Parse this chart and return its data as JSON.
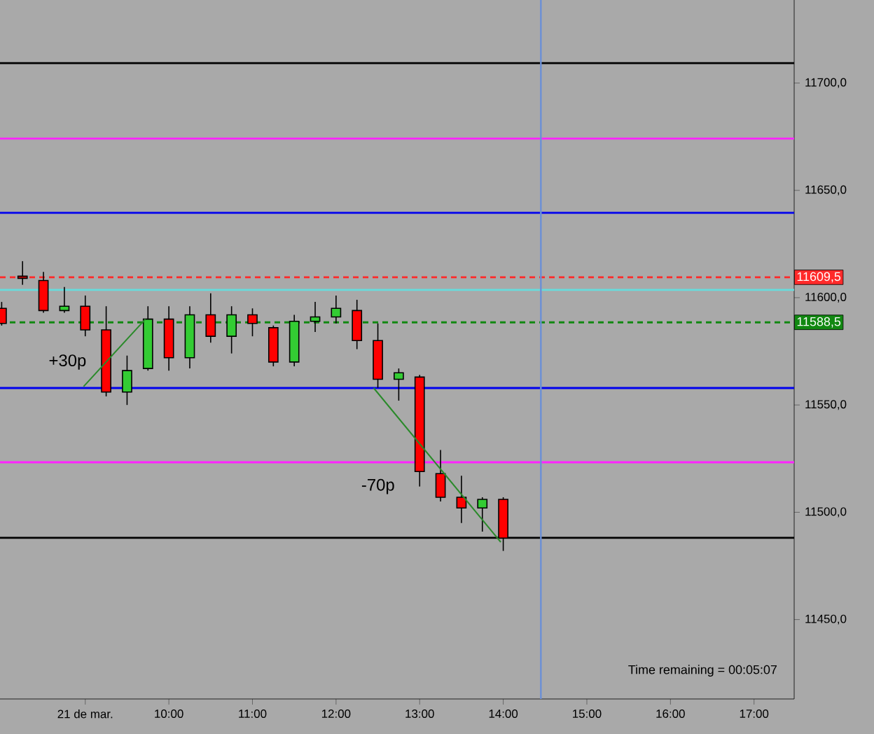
{
  "chart_data": {
    "type": "candlestick",
    "x": [
      8.0,
      8.25,
      8.5,
      8.75,
      9.0,
      9.25,
      9.5,
      9.75,
      10.0,
      10.25,
      10.5,
      10.75,
      11.0,
      11.25,
      11.5,
      11.75,
      12.0,
      12.25,
      12.5,
      12.75,
      13.0,
      13.25,
      13.5,
      13.75,
      14.0
    ],
    "ohlc": [
      [
        11595,
        11598,
        11587,
        11588
      ],
      [
        11610,
        11617,
        11606,
        11609
      ],
      [
        11608,
        11612,
        11593,
        11594
      ],
      [
        11594,
        11605,
        11593,
        11596
      ],
      [
        11596,
        11601,
        11582,
        11585
      ],
      [
        11585,
        11596,
        11554,
        11556
      ],
      [
        11556,
        11573,
        11550,
        11566
      ],
      [
        11567,
        11596,
        11566,
        11590
      ],
      [
        11590,
        11596,
        11566,
        11572
      ],
      [
        11572,
        11596,
        11567,
        11592
      ],
      [
        11592,
        11602,
        11579,
        11582
      ],
      [
        11582,
        11596,
        11574,
        11592
      ],
      [
        11592,
        11595,
        11582,
        11588
      ],
      [
        11586,
        11587,
        11568,
        11570
      ],
      [
        11570,
        11592,
        11568,
        11589
      ],
      [
        11589,
        11598,
        11584,
        11591
      ],
      [
        11591,
        11601,
        11588,
        11595
      ],
      [
        11594,
        11599,
        11576,
        11580
      ],
      [
        11580,
        11588,
        11558,
        11562
      ],
      [
        11562,
        11567,
        11552,
        11565
      ],
      [
        11563,
        11564,
        11512,
        11519
      ],
      [
        11518,
        11529,
        11505,
        11507
      ],
      [
        11507,
        11517,
        11495,
        11502
      ],
      [
        11502,
        11507,
        11491,
        11506
      ],
      [
        11506,
        11507,
        11482,
        11488
      ]
    ],
    "colors": [
      "#ff0000",
      "#ff0000",
      "#ff0000",
      "#33cc33",
      "#ff0000",
      "#ff0000",
      "#33cc33",
      "#33cc33",
      "#ff0000",
      "#33cc33",
      "#ff0000",
      "#33cc33",
      "#ff0000",
      "#ff0000",
      "#33cc33",
      "#33cc33",
      "#33cc33",
      "#ff0000",
      "#ff0000",
      "#33cc33",
      "#ff0000",
      "#ff0000",
      "#ff0000",
      "#33cc33",
      "#ff0000"
    ],
    "series": [
      {
        "type": "line",
        "color": "#2a8a2a",
        "x": [
          8.98,
          9.72
        ],
        "values": [
          11558.6,
          11590
        ]
      },
      {
        "type": "line",
        "color": "#2a8a2a",
        "x": [
          12.45,
          13.97
        ],
        "values": [
          11557.9,
          11486.1
        ]
      }
    ],
    "xlim": [
      7.98,
      17.48
    ],
    "ylim": [
      11413,
      11738.7
    ],
    "xticks": [
      {
        "value": 9,
        "label": "21 de mar."
      },
      {
        "value": 10,
        "label": "10:00"
      },
      {
        "value": 11,
        "label": "11:00"
      },
      {
        "value": 12,
        "label": "12:00"
      },
      {
        "value": 13,
        "label": "13:00"
      },
      {
        "value": 14,
        "label": "14:00"
      },
      {
        "value": 15,
        "label": "15:00"
      },
      {
        "value": 16,
        "label": "16:00"
      },
      {
        "value": 17,
        "label": "17:00"
      }
    ],
    "yticks": [
      {
        "value": 11450,
        "label": "11450,0"
      },
      {
        "value": 11500,
        "label": "11500,0"
      },
      {
        "value": 11550,
        "label": "11550,0"
      },
      {
        "value": 11600,
        "label": "11600,0"
      },
      {
        "value": 11650,
        "label": "11650,0"
      },
      {
        "value": 11700,
        "label": "11700,0"
      }
    ],
    "ref_lines": [
      {
        "axis": "y",
        "value": 11709.3,
        "color": "#000000",
        "line_style": "solid"
      },
      {
        "axis": "y",
        "value": 11674.1,
        "color": "#ff22ff",
        "line_style": "solid"
      },
      {
        "axis": "y",
        "value": 11639.5,
        "color": "#0000ee",
        "line_style": "solid"
      },
      {
        "axis": "y",
        "value": 11609.5,
        "label": "11609,5",
        "color": "#ff2a2a",
        "line_style": "dashed"
      },
      {
        "axis": "y",
        "value": 11603.6,
        "color": "#66dddd",
        "line_style": "solid"
      },
      {
        "axis": "y",
        "value": 11588.5,
        "label": "11588,5",
        "color": "#118811",
        "line_style": "dashed"
      },
      {
        "axis": "y",
        "value": 11557.9,
        "color": "#0000ee",
        "line_style": "solid"
      },
      {
        "axis": "y",
        "value": 11523.3,
        "color": "#ff22ff",
        "line_style": "solid"
      },
      {
        "axis": "y",
        "value": 11488.1,
        "color": "#000000",
        "line_style": "solid"
      },
      {
        "axis": "x",
        "value": 14.45,
        "color": "#6b8fd6",
        "line_style": "solid"
      }
    ],
    "annotations": [
      "+30p",
      "-70p",
      "Time remaining = 00:05:07"
    ],
    "grid": false
  }
}
